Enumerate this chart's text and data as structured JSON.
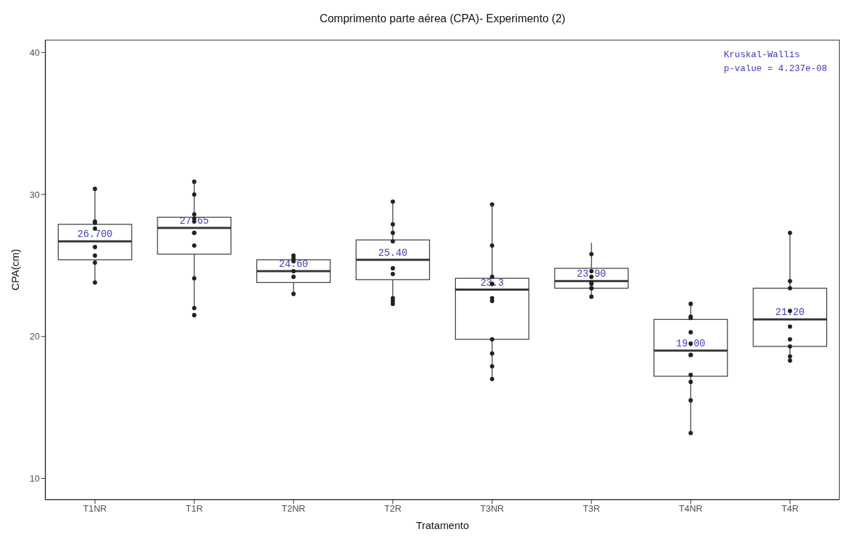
{
  "chart_data": {
    "type": "box",
    "title": "Comprimento parte aérea (CPA)- Experimento (2)",
    "xlabel": "Tratamento",
    "ylabel": "CPA(cm)",
    "categories": [
      "T1NR",
      "T1R",
      "T2NR",
      "T2R",
      "T3NR",
      "T3R",
      "T4NR",
      "T4R"
    ],
    "ylim": [
      8.5,
      40.9
    ],
    "yticks": [
      10,
      20,
      30,
      40
    ],
    "annotations": [
      "Kruskal-Wallis",
      "p-value = 4.237e-08"
    ],
    "series": [
      {
        "type": "box",
        "color": "#333333",
        "value_labels": [
          "26.700",
          "27.65",
          "24.60",
          "25.40",
          "23.3",
          "23.90",
          "19.00",
          "21.20"
        ],
        "boxes": [
          {
            "low": 23.8,
            "q1": 25.4,
            "median": 26.7,
            "q3": 27.9,
            "high": 30.4
          },
          {
            "low": 22.0,
            "q1": 25.8,
            "median": 27.65,
            "q3": 28.4,
            "high": 31.0
          },
          {
            "low": 23.0,
            "q1": 23.8,
            "median": 24.6,
            "q3": 25.4,
            "high": 25.5
          },
          {
            "low": 22.4,
            "q1": 24.0,
            "median": 25.4,
            "q3": 26.8,
            "high": 29.5
          },
          {
            "low": 17.1,
            "q1": 19.8,
            "median": 23.3,
            "q3": 24.1,
            "high": 29.2
          },
          {
            "low": 22.9,
            "q1": 23.4,
            "median": 23.9,
            "q3": 24.8,
            "high": 26.6
          },
          {
            "low": 13.2,
            "q1": 17.2,
            "median": 19.0,
            "q3": 21.2,
            "high": 22.2
          },
          {
            "low": 18.4,
            "q1": 19.3,
            "median": 21.2,
            "q3": 23.4,
            "high": 27.3
          }
        ]
      },
      {
        "type": "scatter",
        "color": "#222222",
        "x": [
          "T1NR",
          "T1NR",
          "T1NR",
          "T1NR",
          "T1NR",
          "T1NR",
          "T1NR",
          "T1NR",
          "T1R",
          "T1R",
          "T1R",
          "T1R",
          "T1R",
          "T1R",
          "T1R",
          "T1R",
          "T1R",
          "T1R",
          "T1R",
          "T2NR",
          "T2NR",
          "T2NR",
          "T2NR",
          "T2NR",
          "T2NR",
          "T2R",
          "T2R",
          "T2R",
          "T2R",
          "T2R",
          "T2R",
          "T2R",
          "T2R",
          "T2R",
          "T3NR",
          "T3NR",
          "T3NR",
          "T3NR",
          "T3NR",
          "T3NR",
          "T3NR",
          "T3NR",
          "T3NR",
          "T3NR",
          "T3NR",
          "T3R",
          "T3R",
          "T3R",
          "T3R",
          "T3R",
          "T3R",
          "T3R",
          "T3R",
          "T4NR",
          "T4NR",
          "T4NR",
          "T4NR",
          "T4NR",
          "T4NR",
          "T4NR",
          "T4NR",
          "T4NR",
          "T4NR",
          "T4NR",
          "T4R",
          "T4R",
          "T4R",
          "T4R",
          "T4R",
          "T4R",
          "T4R",
          "T4R",
          "T4R"
        ],
        "values": [
          30.4,
          28.1,
          28.0,
          27.6,
          26.3,
          25.7,
          25.2,
          23.8,
          30.9,
          30.0,
          28.6,
          28.3,
          28.1,
          27.3,
          27.3,
          26.4,
          24.1,
          22.0,
          21.5,
          25.7,
          25.5,
          25.3,
          24.6,
          24.2,
          23.0,
          29.5,
          27.9,
          27.3,
          26.7,
          24.8,
          24.4,
          22.7,
          22.5,
          22.3,
          29.3,
          26.4,
          24.2,
          23.7,
          23.7,
          22.7,
          22.5,
          19.8,
          18.8,
          17.9,
          17.0,
          25.8,
          24.6,
          24.2,
          23.8,
          23.7,
          23.4,
          23.4,
          22.8,
          22.3,
          21.4,
          21.3,
          20.3,
          19.5,
          18.7,
          18.7,
          17.3,
          16.8,
          15.5,
          13.2,
          27.3,
          23.9,
          23.4,
          21.8,
          20.7,
          19.8,
          19.3,
          18.6,
          18.3
        ]
      }
    ]
  }
}
